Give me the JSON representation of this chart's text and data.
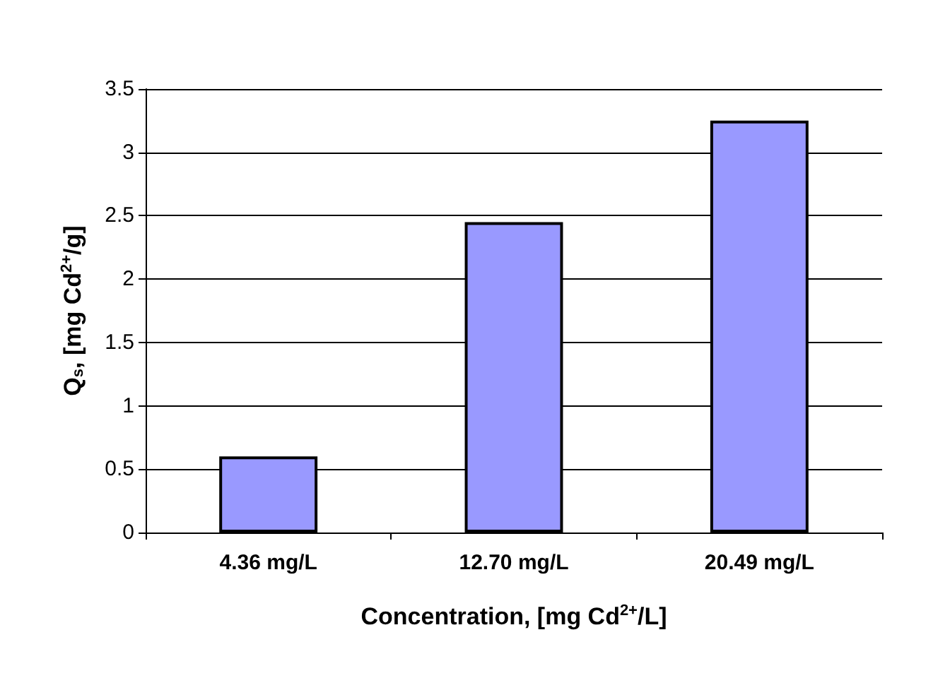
{
  "chart_data": {
    "type": "bar",
    "categories": [
      "4.36 mg/L",
      "12.70 mg/L",
      "20.49 mg/L"
    ],
    "values": [
      0.6,
      2.45,
      3.25
    ],
    "color": "#9999ff",
    "xlabel": "Concentration, [mg Cd$^{2+}$/L]",
    "ylabel": "Q$_{s}$, [mg Cd$^{2+}$/g]",
    "ylim": [
      0,
      3.5
    ],
    "yticks": [
      0,
      0.5,
      1,
      1.5,
      2,
      2.5,
      3,
      3.5
    ],
    "grid": "y"
  }
}
